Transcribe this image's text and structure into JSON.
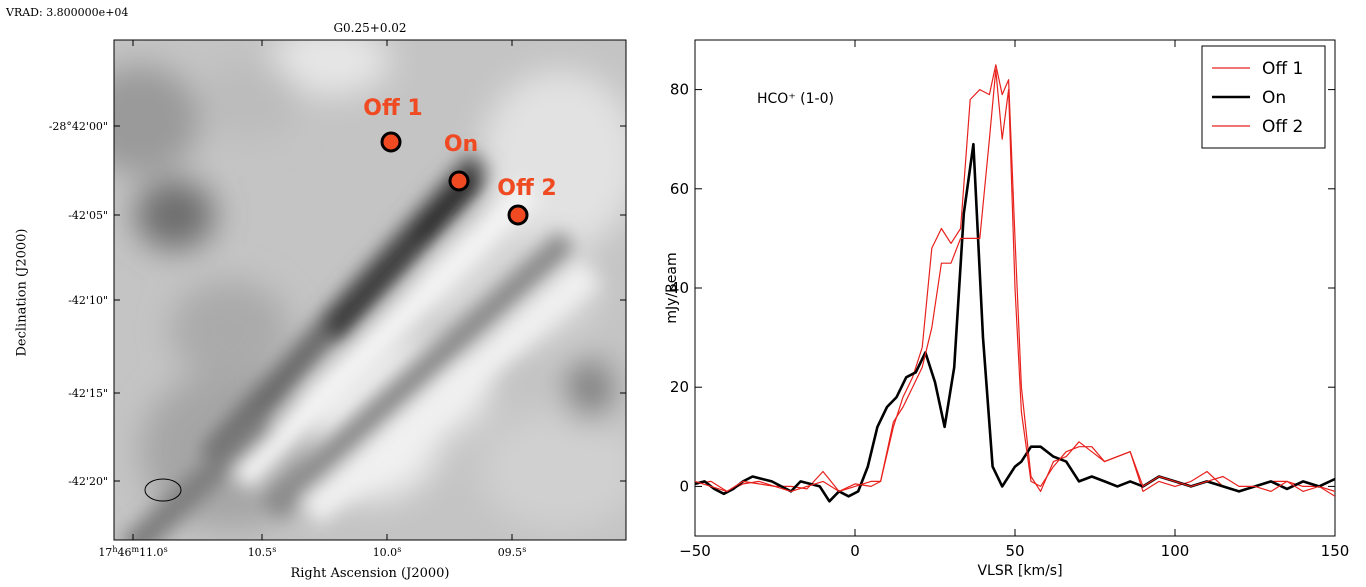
{
  "map": {
    "header_label": "VRAD:  3.800000e+04",
    "title": "G0.25+0.02",
    "xlabel": "Right Ascension (J2000)",
    "ylabel": "Declination (J2000)",
    "dec_ticks": [
      "-28°42'00\"",
      "-42'05\"",
      "-42'10\"",
      "-42'15\"",
      "-42'20\""
    ],
    "ra_ticks": [
      "17h46m11.0s",
      "10.5s",
      "10.0s",
      "09.5s"
    ],
    "markers": [
      {
        "label": "Off 1",
        "color": "#f04a22"
      },
      {
        "label": "On",
        "color": "#f04a22"
      },
      {
        "label": "Off 2",
        "color": "#f04a22"
      }
    ]
  },
  "chart_data": {
    "type": "line",
    "title": "",
    "annotation": "HCO⁺ (1-0)",
    "xlabel": "VLSR [km/s]",
    "ylabel": "mJy/Beam",
    "xlim": [
      -50,
      150
    ],
    "ylim": [
      -10,
      90
    ],
    "xticks": [
      -50,
      0,
      50,
      100,
      150
    ],
    "yticks": [
      0,
      20,
      40,
      60,
      80
    ],
    "legend_position": "top-right",
    "series": [
      {
        "name": "Off 1",
        "color": "#e8211c",
        "x": [
          -50,
          -45,
          -40,
          -35,
          -30,
          -25,
          -20,
          -15,
          -10,
          -5,
          0,
          5,
          8,
          12,
          15,
          18,
          21,
          24,
          27,
          30,
          33,
          36,
          39,
          42,
          44,
          46,
          48,
          50,
          52,
          55,
          58,
          62,
          66,
          70,
          74,
          78,
          82,
          86,
          90,
          95,
          100,
          105,
          110,
          115,
          120,
          125,
          130,
          135,
          140,
          145,
          150
        ],
        "y": [
          0.5,
          1,
          -1,
          0.5,
          1,
          0,
          0,
          -0.5,
          3,
          -1,
          0.5,
          0,
          1,
          12,
          18,
          22,
          28,
          48,
          52,
          49,
          52,
          78,
          80,
          79,
          85,
          79,
          82,
          50,
          20,
          2,
          -1,
          5,
          6,
          9,
          7,
          5,
          6,
          7,
          -1,
          1,
          0,
          1,
          3,
          0,
          -1,
          0,
          1,
          1,
          0,
          0,
          -1
        ]
      },
      {
        "name": "On",
        "color": "#000000",
        "x": [
          -50,
          -47,
          -44,
          -41,
          -38,
          -35,
          -32,
          -29,
          -26,
          -23,
          -20,
          -17,
          -14,
          -11,
          -8,
          -5,
          -2,
          1,
          4,
          7,
          10,
          13,
          16,
          19,
          22,
          25,
          28,
          31,
          34,
          37,
          40,
          43,
          46,
          48,
          50,
          52,
          55,
          58,
          62,
          66,
          70,
          74,
          78,
          82,
          86,
          90,
          95,
          100,
          105,
          110,
          115,
          120,
          125,
          130,
          135,
          140,
          145,
          150
        ],
        "y": [
          0.5,
          1,
          -0.5,
          -1.5,
          -0.5,
          1,
          2,
          1.5,
          1,
          0,
          -1,
          1,
          0.5,
          0,
          -3,
          -1,
          -2,
          -1,
          4,
          12,
          16,
          18,
          22,
          23,
          27,
          21,
          12,
          24,
          55,
          69,
          30,
          4,
          0,
          2,
          4,
          5,
          8,
          8,
          6,
          5,
          1,
          2,
          1,
          0,
          1,
          0,
          2,
          1,
          0,
          1,
          0,
          -1,
          0,
          1,
          -0.5,
          1,
          0,
          1.5
        ]
      },
      {
        "name": "Off 2",
        "color": "#e8211c",
        "x": [
          -50,
          -45,
          -40,
          -35,
          -30,
          -25,
          -20,
          -15,
          -10,
          -5,
          0,
          5,
          8,
          12,
          15,
          18,
          21,
          24,
          27,
          30,
          33,
          36,
          39,
          42,
          44,
          46,
          48,
          50,
          52,
          55,
          58,
          62,
          66,
          70,
          74,
          78,
          82,
          86,
          90,
          95,
          100,
          105,
          110,
          115,
          120,
          125,
          130,
          135,
          140,
          145,
          150
        ],
        "y": [
          1,
          0,
          -1,
          1,
          0.5,
          0,
          -1,
          0,
          1,
          -1,
          0,
          1,
          1,
          13,
          16,
          20,
          24,
          32,
          45,
          45,
          50,
          50,
          50,
          70,
          84,
          70,
          80,
          40,
          15,
          1,
          0,
          4,
          7,
          8,
          8,
          5,
          6,
          7,
          0,
          2,
          1,
          0,
          1,
          2,
          0,
          0,
          -1,
          1,
          -1,
          0,
          -2
        ]
      }
    ]
  }
}
